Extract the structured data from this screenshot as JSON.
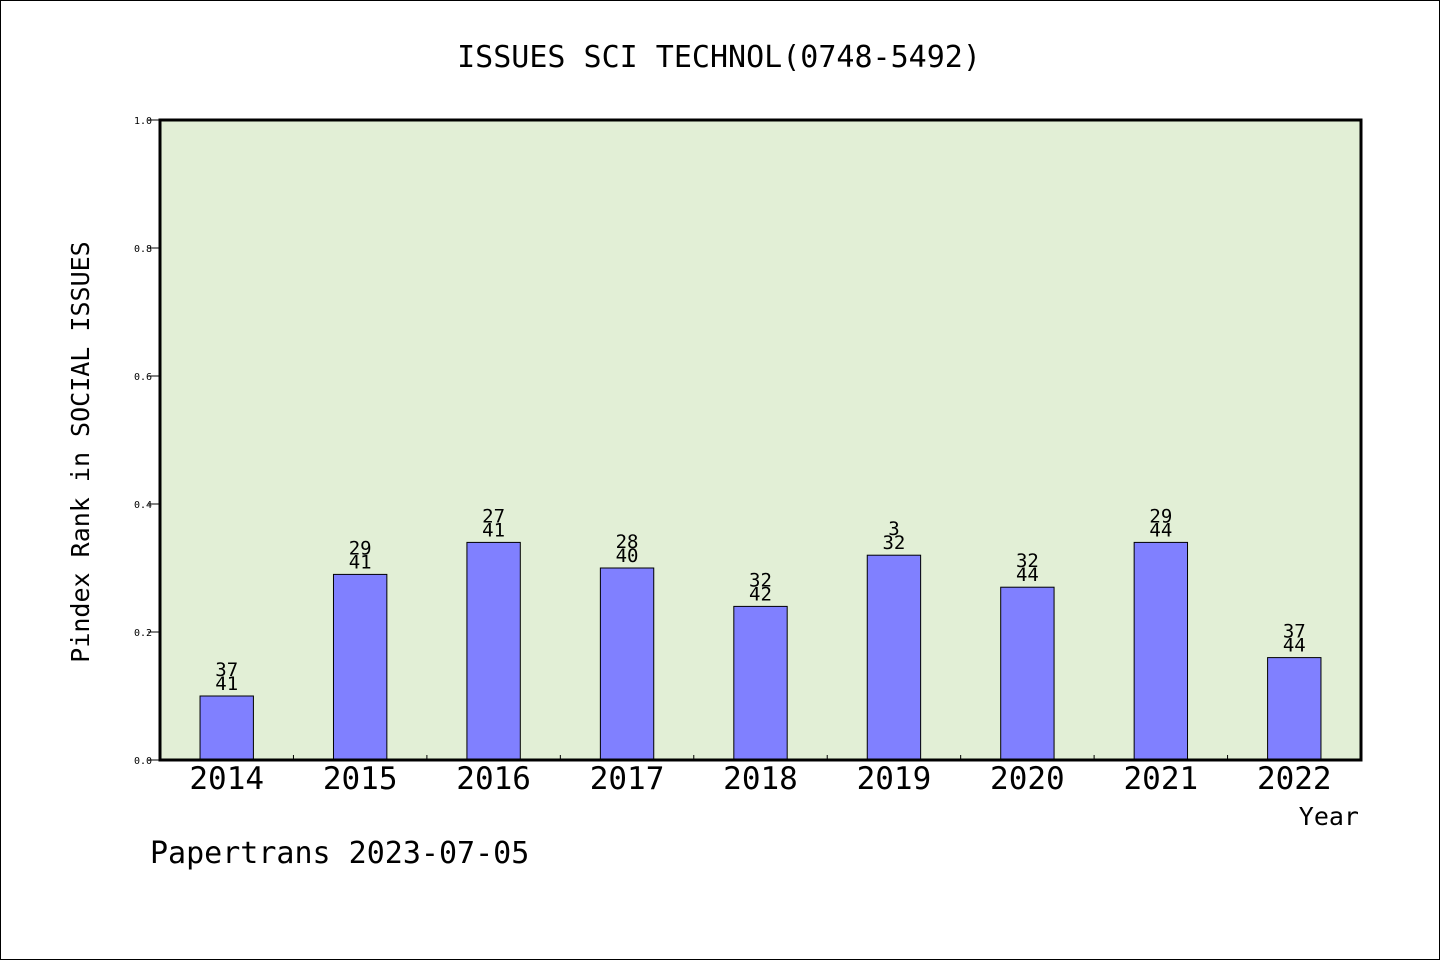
{
  "chart_data": {
    "type": "bar",
    "title": "ISSUES SCI TECHNOL(0748-5492)",
    "xlabel": "Year",
    "ylabel": "Pindex Rank in SOCIAL ISSUES",
    "categories": [
      "2014",
      "2015",
      "2016",
      "2017",
      "2018",
      "2019",
      "2020",
      "2021",
      "2022"
    ],
    "values": [
      0.1,
      0.29,
      0.34,
      0.3,
      0.24,
      0.32,
      0.27,
      0.34,
      0.16
    ],
    "rank_labels": [
      "37",
      "29",
      "27",
      "28",
      "32",
      "3",
      "32",
      "29",
      "37"
    ],
    "total_labels": [
      "41",
      "41",
      "41",
      "40",
      "42",
      "32",
      "44",
      "44",
      "44"
    ],
    "ylim": [
      0,
      1.0
    ],
    "yticks": [
      "0.0",
      "0.2",
      "0.4",
      "0.6",
      "0.8",
      "1.0"
    ],
    "grid": false,
    "legend": "none",
    "colors": {
      "bar": "#8080ff",
      "plot_background": "#e2efd6",
      "axis": "#000000"
    }
  },
  "footer": {
    "credit": "Papertrans 2023-07-05"
  }
}
